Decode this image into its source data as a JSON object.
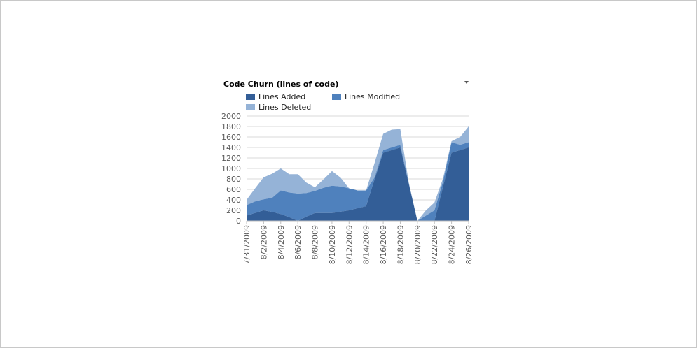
{
  "chart_data": {
    "type": "area",
    "stacked": true,
    "title": "Code Churn (lines of code)",
    "x": [
      "7/31/2009",
      "8/1/2009",
      "8/2/2009",
      "8/3/2009",
      "8/4/2009",
      "8/5/2009",
      "8/6/2009",
      "8/7/2009",
      "8/8/2009",
      "8/9/2009",
      "8/10/2009",
      "8/11/2009",
      "8/12/2009",
      "8/13/2009",
      "8/14/2009",
      "8/15/2009",
      "8/16/2009",
      "8/17/2009",
      "8/18/2009",
      "8/19/2009",
      "8/20/2009",
      "8/21/2009",
      "8/22/2009",
      "8/23/2009",
      "8/24/2009",
      "8/25/2009",
      "8/26/2009"
    ],
    "tick_labels": [
      "7/31/2009",
      "8/2/2009",
      "8/4/2009",
      "8/6/2009",
      "8/8/2009",
      "8/10/2009",
      "8/12/2009",
      "8/14/2009",
      "8/16/2009",
      "8/18/2009",
      "8/20/2009",
      "8/22/2009",
      "8/24/2009",
      "8/26/2009"
    ],
    "series": [
      {
        "name": "Lines Added",
        "color": "#335E97",
        "values": [
          100,
          150,
          200,
          170,
          130,
          70,
          0,
          80,
          150,
          150,
          150,
          175,
          200,
          240,
          280,
          800,
          1300,
          1350,
          1400,
          700,
          0,
          0,
          0,
          650,
          1300,
          1350,
          1400
        ]
      },
      {
        "name": "Lines Modified",
        "color": "#4F81BD",
        "values": [
          200,
          220,
          210,
          270,
          450,
          470,
          520,
          450,
          420,
          480,
          520,
          480,
          420,
          340,
          300,
          30,
          50,
          50,
          50,
          15,
          0,
          100,
          200,
          100,
          200,
          100,
          100
        ]
      },
      {
        "name": "Lines Deleted",
        "color": "#95B3D7",
        "values": [
          100,
          250,
          420,
          460,
          420,
          350,
          370,
          200,
          70,
          160,
          280,
          170,
          0,
          0,
          0,
          280,
          310,
          340,
          300,
          10,
          0,
          100,
          150,
          60,
          20,
          150,
          300
        ]
      }
    ],
    "ylim": [
      0,
      2000
    ],
    "yticks": [
      0,
      200,
      400,
      600,
      800,
      1000,
      1200,
      1400,
      1600,
      1800,
      2000
    ],
    "grid": true,
    "legend_position": "top"
  }
}
